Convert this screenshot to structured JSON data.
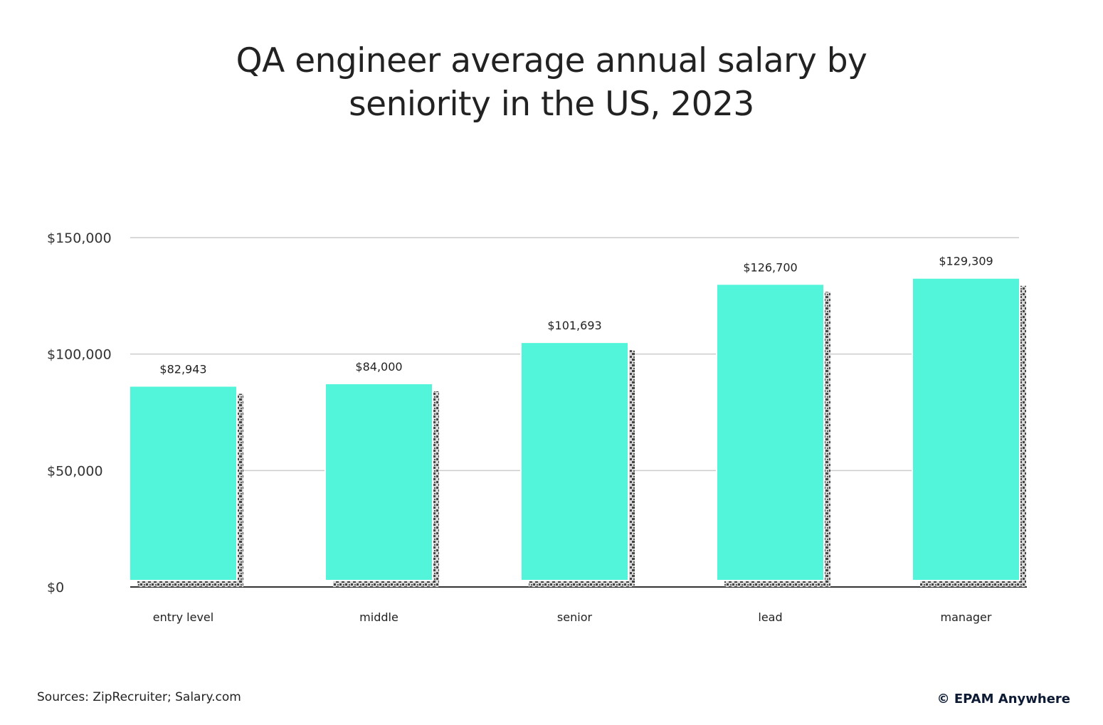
{
  "chart_data": {
    "type": "bar",
    "title_lines": [
      "QA engineer average annual salary by",
      "seniority in the US, 2023"
    ],
    "categories": [
      "entry level",
      "middle",
      "senior",
      "lead",
      "manager"
    ],
    "values": [
      82943,
      84000,
      101693,
      126700,
      129309
    ],
    "data_labels": [
      "$82,943",
      "$84,000",
      "$101,693",
      "$126,700",
      "$129,309"
    ],
    "y_ticks": [
      0,
      50000,
      100000,
      150000
    ],
    "y_tick_labels": [
      "$0",
      "$50,000",
      "$100,000",
      "$150,000"
    ],
    "ylim": [
      0,
      150000
    ],
    "grid": true,
    "xlabel": "",
    "ylabel": "",
    "colors": {
      "bar": "#52f5d9",
      "shadow": "#444444",
      "grid": "#cccccc",
      "axis": "#333333"
    }
  },
  "footer": {
    "sources": "Sources: ZipRecruiter; Salary.com",
    "brand": "© EPAM Anywhere"
  }
}
